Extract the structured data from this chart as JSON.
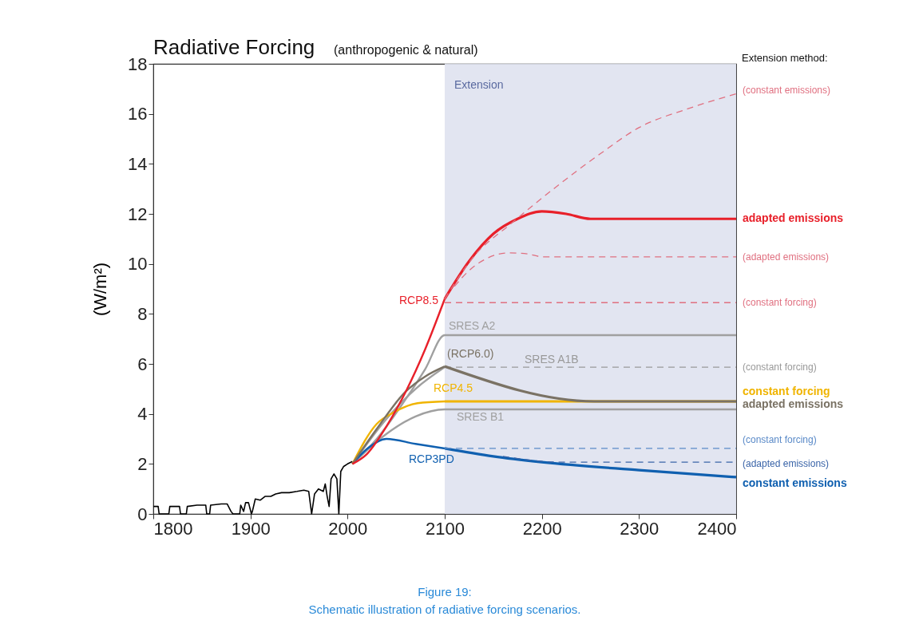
{
  "chart_data": {
    "type": "line",
    "title": "Radiative Forcing",
    "subtitle": "(anthropogenic & natural)",
    "ylabel": "(W/m²)",
    "xlim": [
      1800,
      2400
    ],
    "xticks": [
      1800,
      1900,
      2000,
      2100,
      2200,
      2300,
      2400
    ],
    "ylim": [
      0,
      18
    ],
    "yticks": [
      0,
      2,
      4,
      6,
      8,
      10,
      12,
      14,
      16,
      18
    ],
    "grid": false,
    "bands": [
      {
        "axis": "x",
        "from": 2100,
        "to": 2400,
        "label": "Extension",
        "color": "#dfe2f0"
      }
    ],
    "annotations": [
      "Extension method:",
      "Figure 19:",
      "Schematic illustration of radiative forcing scenarios.",
      {
        "text": "(constant forcing)",
        "x": 2400,
        "y": 5.87
      }
    ],
    "series": [
      {
        "color": "#000000",
        "line_style": "solid",
        "x": [
          1800,
          1805,
          1806,
          1816,
          1817,
          1818,
          1827,
          1828,
          1829,
          1834,
          1835,
          1845,
          1854,
          1855,
          1858,
          1859,
          1870,
          1876,
          1880,
          1882,
          1889,
          1890,
          1893,
          1895,
          1898,
          1901,
          1902,
          1905,
          1910,
          1915,
          1921,
          1926,
          1932,
          1940,
          1948,
          1955,
          1960,
          1963,
          1966,
          1970,
          1975,
          1977,
          1979,
          1981,
          1983,
          1986,
          1989,
          1991,
          1993,
          1996,
          2000,
          2005
        ],
        "values": [
          0.3,
          0.3,
          0,
          0,
          0.3,
          0.3,
          0.3,
          0,
          0,
          0,
          0.3,
          0.35,
          0.35,
          0,
          0,
          0.35,
          0.4,
          0.4,
          0.1,
          0,
          0,
          0.35,
          0.1,
          0.45,
          0.45,
          0,
          0.1,
          0.6,
          0.55,
          0.7,
          0.7,
          0.8,
          0.85,
          0.85,
          0.9,
          0.95,
          0.9,
          0,
          0.8,
          1.0,
          0.9,
          1.2,
          0.7,
          0.3,
          1.4,
          1.6,
          1.4,
          0,
          1.7,
          1.9,
          2.0,
          2.1
        ]
      },
      {
        "name": "SRES A2",
        "color": "#a0a0a0",
        "line_style": "solid",
        "x": [
          2005,
          2030,
          2060,
          2080,
          2100,
          2400
        ],
        "values": [
          2.0,
          3.0,
          4.6,
          5.8,
          7.15,
          7.15
        ]
      },
      {
        "color": "#a0a0a0",
        "line_style": "solid",
        "x": [
          2005,
          2040,
          2070,
          2100
        ],
        "values": [
          2.0,
          3.8,
          5.0,
          5.87
        ]
      },
      {
        "name": "SRES A1B",
        "color": "#999999",
        "line_style": "dashed",
        "x": [
          2100,
          2400
        ],
        "values": [
          5.87,
          5.87
        ]
      },
      {
        "name": "SRES B1",
        "color": "#a0a0a0",
        "line_style": "solid",
        "x": [
          2005,
          2040,
          2070,
          2100,
          2400
        ],
        "values": [
          2.0,
          3.2,
          3.9,
          4.18,
          4.18
        ]
      },
      {
        "name": "RCP3PD",
        "color": "#1060b0",
        "line_style": "solid",
        "x": [
          2005,
          2020,
          2040,
          2070,
          2100
        ],
        "values": [
          2.0,
          2.6,
          3.0,
          2.8,
          2.62
        ]
      },
      {
        "name": "constant emissions",
        "color": "#1060b0",
        "line_style": "solid",
        "x": [
          2100,
          2150,
          2200,
          2300,
          2400
        ],
        "values": [
          2.62,
          2.3,
          2.07,
          1.75,
          1.47
        ]
      },
      {
        "name": "(constant forcing)",
        "color": "#5a8ac8",
        "line_style": "dashed",
        "x": [
          2100,
          2400
        ],
        "values": [
          2.62,
          2.62
        ]
      },
      {
        "name": "(adapted emissions)",
        "color": "#3a64a8",
        "line_style": "dashed",
        "x": [
          2160,
          2220,
          2400
        ],
        "values": [
          2.3,
          2.07,
          2.07
        ]
      },
      {
        "name": "RCP4.5",
        "color": "#f0b400",
        "line_style": "solid",
        "x": [
          2005,
          2030,
          2047,
          2072,
          2100
        ],
        "values": [
          2.0,
          3.6,
          4.05,
          4.43,
          4.5
        ]
      },
      {
        "name": "constant  forcing",
        "color": "#f0b400",
        "line_style": "solid",
        "x": [
          2100,
          2400
        ],
        "values": [
          4.5,
          4.5
        ]
      },
      {
        "name": "(RCP6.0)",
        "color": "#7a7264",
        "line_style": "solid",
        "x": [
          2005,
          2030,
          2060,
          2080,
          2100
        ],
        "values": [
          2.0,
          3.4,
          4.9,
          5.5,
          5.9
        ]
      },
      {
        "name": "adapted emissions",
        "color": "#7a7264",
        "line_style": "solid",
        "x": [
          2100,
          2254,
          2400
        ],
        "values": [
          5.9,
          4.5,
          4.5
        ]
      },
      {
        "name": "RCP8.5",
        "color": "#e8202a",
        "line_style": "solid",
        "x": [
          2005,
          2020,
          2040,
          2060,
          2080,
          2100
        ],
        "values": [
          2.0,
          2.4,
          3.5,
          4.9,
          6.6,
          8.6
        ]
      },
      {
        "name": "adapted emissions",
        "color": "#e8202a",
        "line_style": "solid",
        "x": [
          2100,
          2125,
          2150,
          2175,
          2200,
          2225,
          2250,
          2400
        ],
        "values": [
          8.6,
          10.1,
          11.2,
          11.8,
          12.1,
          12.0,
          11.8,
          11.8
        ]
      },
      {
        "name": "(constant emissions)",
        "color": "#e07080",
        "line_style": "dashed",
        "x": [
          2100,
          2130,
          2168,
          2217,
          2260,
          2300,
          2350,
          2400
        ],
        "values": [
          8.6,
          10.3,
          11.6,
          13.15,
          14.4,
          15.45,
          16.2,
          16.8
        ]
      },
      {
        "name": "(adapted emissions)",
        "color": "#e07080",
        "line_style": "dashed",
        "x": [
          2110,
          2127,
          2145,
          2166,
          2185,
          2201,
          2400
        ],
        "values": [
          9.1,
          9.8,
          10.25,
          10.44,
          10.4,
          10.28,
          10.28
        ]
      },
      {
        "name": "(constant forcing)",
        "color": "#e07080",
        "line_style": "dashed",
        "x": [
          2100,
          2400
        ],
        "values": [
          8.45,
          8.45
        ]
      }
    ]
  }
}
